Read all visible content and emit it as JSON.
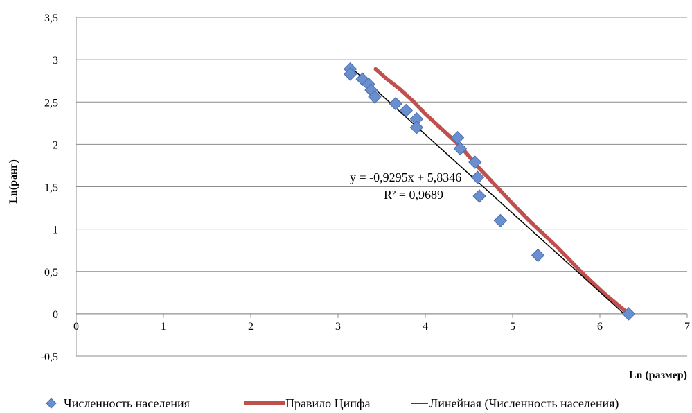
{
  "chart_data": {
    "type": "scatter",
    "xlabel": "Ln (размер)",
    "ylabel": "Ln(ранг)",
    "xlim": [
      0,
      7
    ],
    "ylim": [
      -0.5,
      3.5
    ],
    "x_ticks": [
      "0",
      "1",
      "2",
      "3",
      "4",
      "5",
      "6",
      "7"
    ],
    "y_ticks": [
      "-0,5",
      "0",
      "0,5",
      "1",
      "1,5",
      "2",
      "2,5",
      "3",
      "3,5"
    ],
    "grid": "horizontal",
    "legend_position": "bottom",
    "series": [
      {
        "name": "Численность населения",
        "kind": "scatter",
        "color": "#6a8fd0",
        "points": [
          {
            "x": 3.14,
            "y": 2.89
          },
          {
            "x": 3.14,
            "y": 2.83
          },
          {
            "x": 3.28,
            "y": 2.77
          },
          {
            "x": 3.35,
            "y": 2.71
          },
          {
            "x": 3.38,
            "y": 2.64
          },
          {
            "x": 3.42,
            "y": 2.56
          },
          {
            "x": 3.66,
            "y": 2.48
          },
          {
            "x": 3.78,
            "y": 2.4
          },
          {
            "x": 3.9,
            "y": 2.3
          },
          {
            "x": 3.9,
            "y": 2.2
          },
          {
            "x": 4.37,
            "y": 2.08
          },
          {
            "x": 4.4,
            "y": 1.95
          },
          {
            "x": 4.57,
            "y": 1.79
          },
          {
            "x": 4.6,
            "y": 1.61
          },
          {
            "x": 4.62,
            "y": 1.39
          },
          {
            "x": 4.86,
            "y": 1.1
          },
          {
            "x": 5.29,
            "y": 0.69
          },
          {
            "x": 6.33,
            "y": 0.0
          }
        ]
      },
      {
        "name": "Правило Ципфа",
        "kind": "line",
        "color": "#c0504d",
        "points": [
          {
            "x": 3.43,
            "y": 2.89
          },
          {
            "x": 3.55,
            "y": 2.78
          },
          {
            "x": 3.7,
            "y": 2.66
          },
          {
            "x": 3.85,
            "y": 2.52
          },
          {
            "x": 4.0,
            "y": 2.36
          },
          {
            "x": 4.2,
            "y": 2.17
          },
          {
            "x": 4.4,
            "y": 1.98
          },
          {
            "x": 4.6,
            "y": 1.74
          },
          {
            "x": 4.8,
            "y": 1.52
          },
          {
            "x": 5.0,
            "y": 1.3
          },
          {
            "x": 5.2,
            "y": 1.09
          },
          {
            "x": 5.5,
            "y": 0.8
          },
          {
            "x": 5.8,
            "y": 0.48
          },
          {
            "x": 6.05,
            "y": 0.24
          },
          {
            "x": 6.33,
            "y": 0.0
          }
        ]
      },
      {
        "name": "Линейная (Численность населения)",
        "kind": "trendline",
        "color": "#000000",
        "slope": -0.9295,
        "intercept": 5.8346,
        "x_range": [
          3.14,
          6.33
        ]
      }
    ],
    "annotations": {
      "equation": "y = -0,9295x + 5,8346",
      "r2": "R² = 0,9689"
    }
  }
}
